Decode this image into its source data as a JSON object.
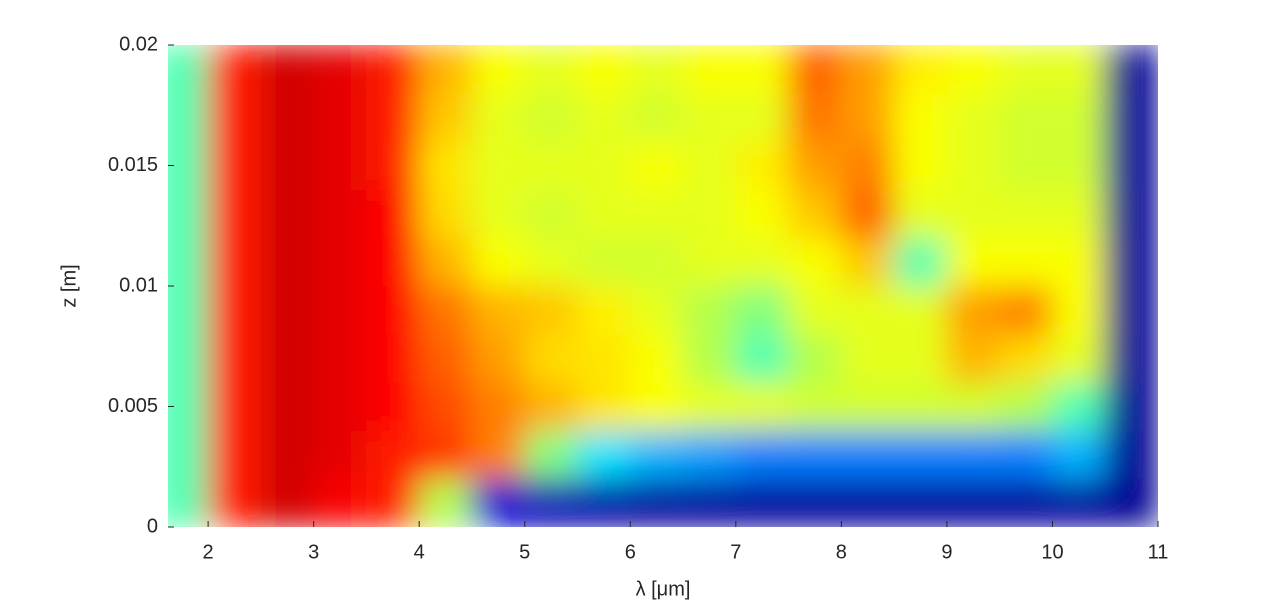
{
  "chart_data": {
    "type": "heatmap",
    "colormap": "jet",
    "xlabel": "λ [μm]",
    "ylabel": "z [m]",
    "xlim": [
      1.62,
      11
    ],
    "ylim": [
      0,
      0.02
    ],
    "xticks": [
      2,
      3,
      4,
      5,
      6,
      7,
      8,
      9,
      10,
      11
    ],
    "yticks": [
      0,
      0.005,
      0.01,
      0.015,
      0.02
    ],
    "x": [
      1.75,
      2.25,
      2.75,
      3.25,
      3.75,
      4.25,
      4.75,
      5.25,
      5.75,
      6.25,
      6.75,
      7.25,
      7.75,
      8.25,
      8.75,
      9.25,
      9.75,
      10.25,
      10.75
    ],
    "y": [
      0.001,
      0.003,
      0.005,
      0.007,
      0.009,
      0.011,
      0.013,
      0.015,
      0.017,
      0.019
    ],
    "z": [
      [
        0.45,
        0.85,
        0.92,
        0.88,
        0.85,
        0.55,
        0.08,
        0.05,
        0.04,
        0.03,
        0.03,
        0.03,
        0.03,
        0.03,
        0.03,
        0.03,
        0.03,
        0.03,
        0.02
      ],
      [
        0.45,
        0.85,
        0.92,
        0.9,
        0.85,
        0.82,
        0.75,
        0.5,
        0.35,
        0.3,
        0.28,
        0.25,
        0.25,
        0.25,
        0.25,
        0.25,
        0.25,
        0.3,
        0.02
      ],
      [
        0.45,
        0.85,
        0.92,
        0.9,
        0.87,
        0.8,
        0.75,
        0.7,
        0.65,
        0.62,
        0.6,
        0.6,
        0.58,
        0.58,
        0.58,
        0.58,
        0.55,
        0.45,
        0.02
      ],
      [
        0.45,
        0.85,
        0.92,
        0.9,
        0.87,
        0.78,
        0.72,
        0.66,
        0.65,
        0.62,
        0.55,
        0.45,
        0.55,
        0.6,
        0.6,
        0.7,
        0.66,
        0.6,
        0.02
      ],
      [
        0.45,
        0.85,
        0.92,
        0.9,
        0.87,
        0.76,
        0.7,
        0.68,
        0.64,
        0.6,
        0.55,
        0.5,
        0.6,
        0.6,
        0.6,
        0.72,
        0.75,
        0.62,
        0.02
      ],
      [
        0.45,
        0.85,
        0.92,
        0.9,
        0.87,
        0.7,
        0.62,
        0.6,
        0.58,
        0.58,
        0.6,
        0.6,
        0.62,
        0.68,
        0.45,
        0.62,
        0.62,
        0.62,
        0.02
      ],
      [
        0.45,
        0.85,
        0.92,
        0.9,
        0.87,
        0.66,
        0.6,
        0.58,
        0.6,
        0.6,
        0.6,
        0.62,
        0.68,
        0.78,
        0.6,
        0.6,
        0.6,
        0.6,
        0.02
      ],
      [
        0.45,
        0.85,
        0.92,
        0.9,
        0.85,
        0.65,
        0.6,
        0.6,
        0.6,
        0.62,
        0.6,
        0.64,
        0.72,
        0.75,
        0.62,
        0.6,
        0.58,
        0.58,
        0.02
      ],
      [
        0.45,
        0.85,
        0.92,
        0.9,
        0.85,
        0.68,
        0.6,
        0.58,
        0.6,
        0.58,
        0.6,
        0.6,
        0.76,
        0.72,
        0.62,
        0.6,
        0.58,
        0.58,
        0.02
      ],
      [
        0.45,
        0.85,
        0.92,
        0.9,
        0.85,
        0.7,
        0.62,
        0.6,
        0.62,
        0.6,
        0.62,
        0.62,
        0.78,
        0.72,
        0.64,
        0.62,
        0.6,
        0.6,
        0.02
      ]
    ]
  }
}
